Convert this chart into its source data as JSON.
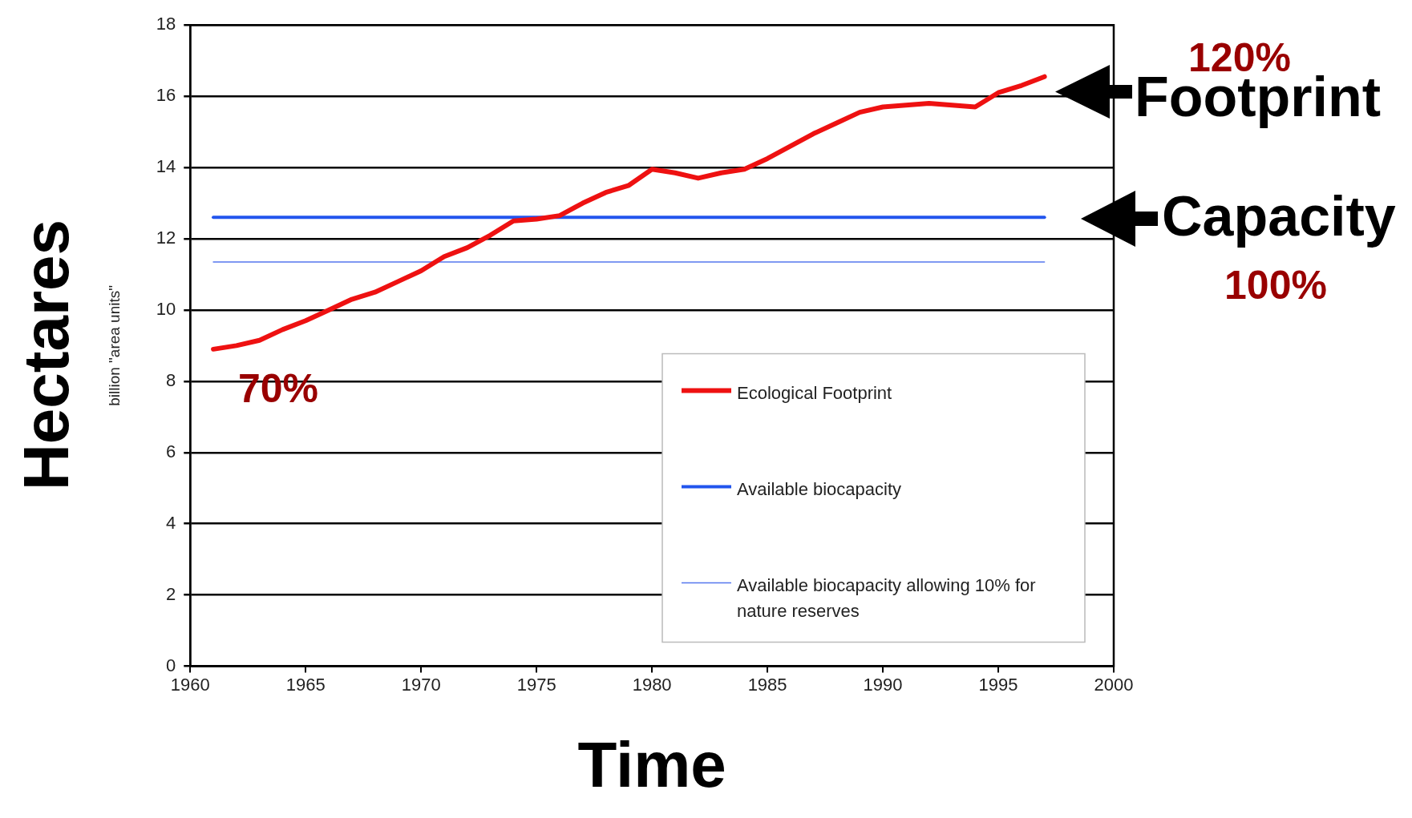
{
  "chart_data": {
    "type": "line",
    "xlabel": "Time",
    "ylabel": "billion \"area units\"",
    "x": [
      1961,
      1962,
      1963,
      1964,
      1965,
      1966,
      1967,
      1968,
      1969,
      1970,
      1971,
      1972,
      1973,
      1974,
      1975,
      1976,
      1977,
      1978,
      1979,
      1980,
      1981,
      1982,
      1983,
      1984,
      1985,
      1986,
      1987,
      1988,
      1989,
      1990,
      1991,
      1992,
      1993,
      1994,
      1995,
      1996,
      1997
    ],
    "series": [
      {
        "name": "Ecological Footprint",
        "color": "#ee1111",
        "values": [
          8.9,
          9.0,
          9.15,
          9.45,
          9.7,
          10.0,
          10.3,
          10.5,
          10.8,
          11.1,
          11.5,
          11.75,
          12.1,
          12.5,
          12.55,
          12.65,
          13.0,
          13.3,
          13.5,
          13.95,
          13.85,
          13.7,
          13.85,
          13.95,
          14.25,
          14.6,
          14.95,
          15.25,
          15.55,
          15.7,
          15.75,
          15.8,
          15.75,
          15.7,
          16.1,
          16.3,
          16.55
        ]
      },
      {
        "name": "Available biocapacity",
        "color": "#2255ee",
        "values": [
          12.6,
          12.6,
          12.6,
          12.6,
          12.6,
          12.6,
          12.6,
          12.6,
          12.6,
          12.6,
          12.6,
          12.6,
          12.6,
          12.6,
          12.6,
          12.6,
          12.6,
          12.6,
          12.6,
          12.6,
          12.6,
          12.6,
          12.6,
          12.6,
          12.6,
          12.6,
          12.6,
          12.6,
          12.6,
          12.6,
          12.6,
          12.6,
          12.6,
          12.6,
          12.6,
          12.6,
          12.6
        ]
      },
      {
        "name": "Available biocapacity allowing 10% for nature reserves",
        "color": "#5577ee",
        "values": [
          11.35,
          11.35,
          11.35,
          11.35,
          11.35,
          11.35,
          11.35,
          11.35,
          11.35,
          11.35,
          11.35,
          11.35,
          11.35,
          11.35,
          11.35,
          11.35,
          11.35,
          11.35,
          11.35,
          11.35,
          11.35,
          11.35,
          11.35,
          11.35,
          11.35,
          11.35,
          11.35,
          11.35,
          11.35,
          11.35,
          11.35,
          11.35,
          11.35,
          11.35,
          11.35,
          11.35,
          11.35
        ]
      }
    ],
    "xlim": [
      1960,
      2000
    ],
    "xticks": [
      1960,
      1965,
      1970,
      1975,
      1980,
      1985,
      1990,
      1995,
      2000
    ],
    "ylim": [
      0,
      18
    ],
    "yticks": [
      0,
      2,
      4,
      6,
      8,
      10,
      12,
      14,
      16,
      18
    ],
    "grid": "y",
    "legend": "bottom right",
    "marker": "none",
    "line_style": "solid",
    "annotations": [
      "Hectares",
      "70%",
      "120%",
      "Footprint",
      "Capacity",
      "100%"
    ]
  }
}
